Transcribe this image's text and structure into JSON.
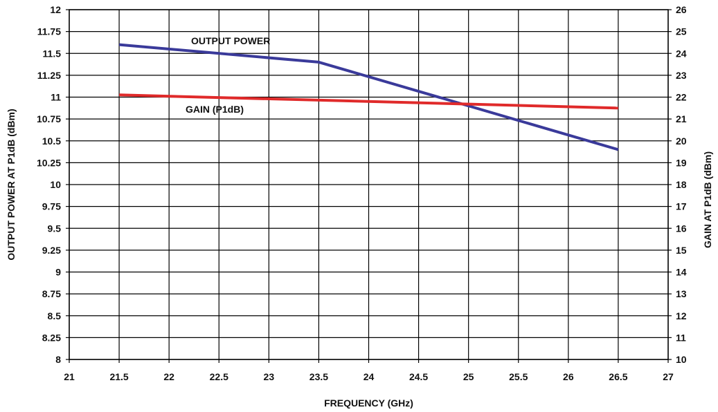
{
  "chart_data": {
    "type": "line",
    "title": "",
    "xlabel": "FREQUENCY (GHz)",
    "ylabel_left": "OUTPUT POWER AT P1dB (dBm)",
    "ylabel_right": "GAIN AT P1dB (dBm)",
    "xlim": [
      21,
      27
    ],
    "ylim_left": [
      8,
      12
    ],
    "ylim_right": [
      10,
      26
    ],
    "x_ticks": [
      "21",
      "21.5",
      "22",
      "22.5",
      "23",
      "23.5",
      "24",
      "24.5",
      "25",
      "25.5",
      "26",
      "26.5",
      "27"
    ],
    "y_left_ticks": [
      "8",
      "8.25",
      "8.5",
      "8.75",
      "9",
      "9.25",
      "9.5",
      "9.75",
      "10",
      "10.25",
      "10.5",
      "10.75",
      "11",
      "11.25",
      "11.5",
      "11.75",
      "12"
    ],
    "y_right_ticks": [
      "10",
      "11",
      "12",
      "13",
      "14",
      "15",
      "16",
      "17",
      "18",
      "19",
      "20",
      "21",
      "22",
      "23",
      "24",
      "25",
      "26"
    ],
    "grid": true,
    "legend": "none",
    "series": [
      {
        "name": "OUTPUT POWER",
        "axis": "left",
        "color": "#3a3a9a",
        "x": [
          21.5,
          23.5,
          26.5
        ],
        "y": [
          11.6,
          11.4,
          10.4
        ]
      },
      {
        "name": "GAIN (P1dB)",
        "axis": "right",
        "color": "#e02a2a",
        "x": [
          21.5,
          26.5
        ],
        "y": [
          22.1,
          21.5
        ]
      }
    ]
  }
}
